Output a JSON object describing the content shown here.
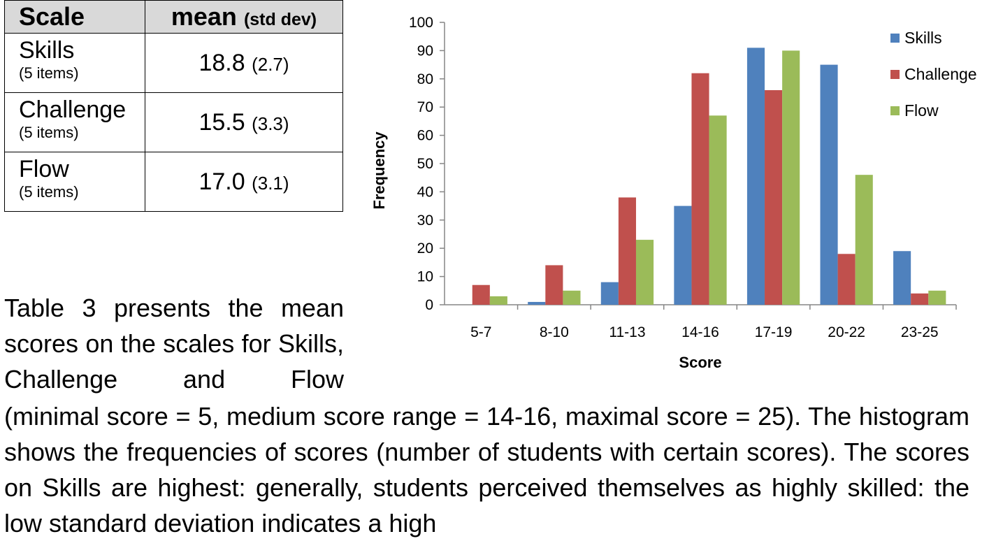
{
  "table": {
    "header": {
      "scale": "Scale",
      "mean": "mean",
      "std": "(std dev)"
    },
    "rows": [
      {
        "name": "Skills",
        "items": "(5 items)",
        "mean": "18.8",
        "sd": "(2.7)"
      },
      {
        "name": "Challenge",
        "items": "(5 items)",
        "mean": "15.5",
        "sd": "(3.3)"
      },
      {
        "name": "Flow",
        "items": "(5 items)",
        "mean": "17.0",
        "sd": "(3.1)"
      }
    ]
  },
  "text": {
    "left": "Table 3 presents the mean scores on the scales for Skills, Challenge and Flow",
    "full": "(minimal score = 5, medium score range = 14-16, maximal score = 25). The histogram shows the frequencies of scores (number of students with certain scores). The scores on Skills are highest: generally, students perceived themselves as highly skilled: the low standard deviation indicates a high"
  },
  "chart_data": {
    "type": "bar",
    "categories": [
      "5-7",
      "8-10",
      "11-13",
      "14-16",
      "17-19",
      "20-22",
      "23-25"
    ],
    "series": [
      {
        "name": "Skills",
        "color": "#4f81bd",
        "values": [
          0,
          1,
          8,
          35,
          91,
          85,
          19
        ]
      },
      {
        "name": "Challenge",
        "color": "#c0504d",
        "values": [
          7,
          14,
          38,
          82,
          76,
          18,
          4
        ]
      },
      {
        "name": "Flow",
        "color": "#9bbb59",
        "values": [
          3,
          5,
          23,
          67,
          90,
          46,
          5
        ]
      }
    ],
    "xlabel": "Score",
    "ylabel": "Frequency",
    "ylim": [
      0,
      100
    ],
    "yticks": [
      "0",
      "10",
      "20",
      "30",
      "40",
      "50",
      "60",
      "70",
      "80",
      "90",
      "100"
    ],
    "grid": false,
    "legend": "top-right"
  }
}
